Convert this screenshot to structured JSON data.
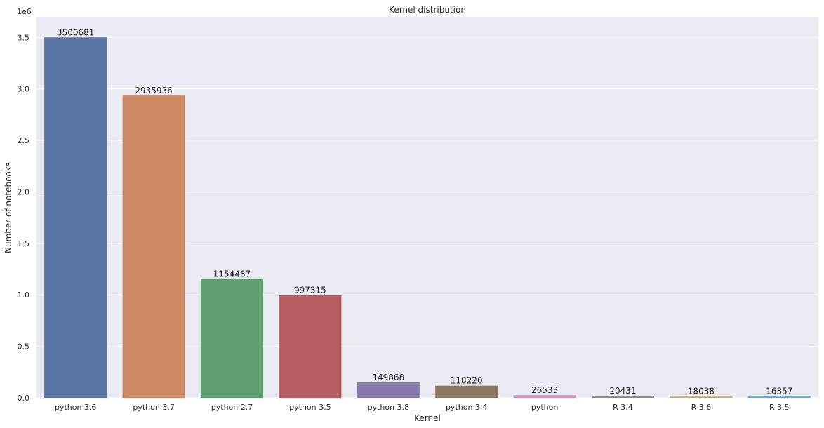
{
  "chart_data": {
    "type": "bar",
    "title": "Kernel distribution",
    "xlabel": "Kernel",
    "ylabel": "Number of notebooks",
    "y_scale_label": "1e6",
    "categories": [
      "python 3.6",
      "python 3.7",
      "python 2.7",
      "python 3.5",
      "python 3.8",
      "python 3.4",
      "python",
      "R 3.4",
      "R 3.6",
      "R 3.5"
    ],
    "values": [
      3500681,
      2935936,
      1154487,
      997315,
      149868,
      118220,
      26533,
      20431,
      18038,
      16357
    ],
    "data_labels": [
      "3500681",
      "2935936",
      "1154487",
      "997315",
      "149868",
      "118220",
      "26533",
      "20431",
      "18038",
      "16357"
    ],
    "ylim": [
      0,
      3700000
    ],
    "yticks": [
      0,
      500000,
      1000000,
      1500000,
      2000000,
      2500000,
      3000000,
      3500000
    ],
    "ytick_labels": [
      "0.0",
      "0.5",
      "1.0",
      "1.5",
      "2.0",
      "2.5",
      "3.0",
      "3.5"
    ],
    "colors": [
      "#5875a4",
      "#cc8963",
      "#5f9e6e",
      "#b55d60",
      "#857aab",
      "#8d7866",
      "#d095bf",
      "#8c8c8c",
      "#c1b37f",
      "#6cadc6"
    ],
    "background_color": "#eaeaf2",
    "grid": true,
    "legend": "none"
  }
}
